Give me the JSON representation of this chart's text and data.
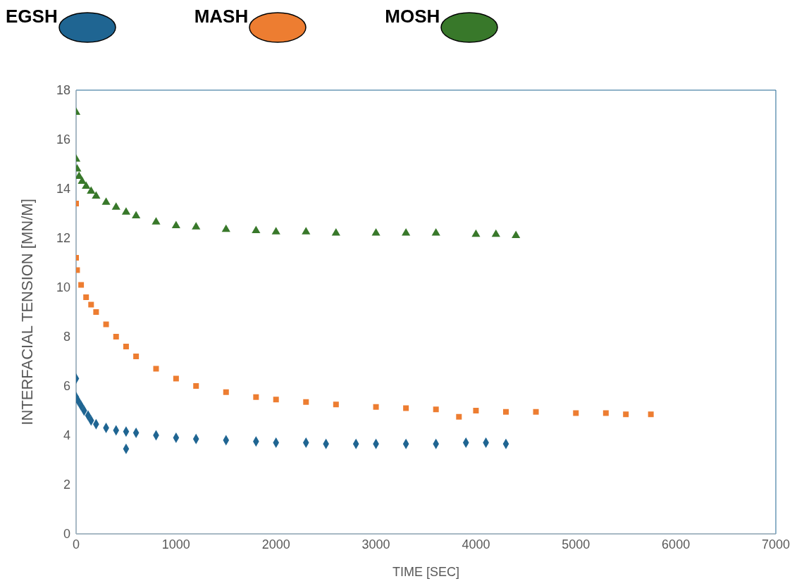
{
  "chart_data": {
    "type": "scatter",
    "xlabel": "TIME [SEC]",
    "ylabel": "INTERFACIAL TENSION [MN/M]",
    "xlim": [
      0,
      7000
    ],
    "xticks": [
      0,
      1000,
      2000,
      3000,
      4000,
      5000,
      6000,
      7000
    ],
    "ylim": [
      0,
      18
    ],
    "yticks": [
      0,
      2,
      4,
      6,
      8,
      10,
      12,
      14,
      16,
      18
    ],
    "grid": false,
    "legend": "top left",
    "series": [
      {
        "name": "EGSH",
        "color": "#1f6592",
        "marker": "diamond",
        "x": [
          0,
          0,
          20,
          50,
          80,
          120,
          150,
          200,
          300,
          400,
          500,
          600,
          800,
          1000,
          1200,
          1500,
          1800,
          2000,
          2300,
          2500,
          2800,
          3000,
          3300,
          3600,
          3900,
          4100,
          4300,
          500
        ],
        "values": [
          6.3,
          5.55,
          5.4,
          5.2,
          5.0,
          4.8,
          4.6,
          4.45,
          4.3,
          4.2,
          4.15,
          4.1,
          4.0,
          3.9,
          3.85,
          3.8,
          3.75,
          3.7,
          3.7,
          3.65,
          3.65,
          3.65,
          3.65,
          3.65,
          3.7,
          3.7,
          3.65,
          3.45
        ]
      },
      {
        "name": "MASH",
        "color": "#ed7d31",
        "marker": "square",
        "x": [
          0,
          0,
          10,
          50,
          100,
          150,
          200,
          300,
          400,
          500,
          600,
          800,
          1000,
          1200,
          1500,
          1800,
          2000,
          2300,
          2600,
          3000,
          3300,
          3600,
          4000,
          4300,
          4600,
          5000,
          5300,
          5500,
          5750,
          3830
        ],
        "values": [
          13.4,
          11.2,
          10.7,
          10.1,
          9.6,
          9.3,
          9.0,
          8.5,
          8.0,
          7.6,
          7.2,
          6.7,
          6.3,
          6.0,
          5.75,
          5.55,
          5.45,
          5.35,
          5.25,
          5.15,
          5.1,
          5.05,
          5.0,
          4.95,
          4.95,
          4.9,
          4.9,
          4.85,
          4.85,
          4.75
        ]
      },
      {
        "name": "MOSH",
        "color": "#38782a",
        "marker": "triangle",
        "x": [
          0,
          0,
          10,
          30,
          60,
          100,
          150,
          200,
          300,
          400,
          500,
          600,
          800,
          1000,
          1200,
          1500,
          1800,
          2000,
          2300,
          2600,
          3000,
          3300,
          3600,
          4000,
          4200,
          4400
        ],
        "values": [
          17.1,
          15.2,
          14.8,
          14.5,
          14.3,
          14.1,
          13.9,
          13.7,
          13.45,
          13.25,
          13.05,
          12.9,
          12.65,
          12.5,
          12.45,
          12.35,
          12.3,
          12.25,
          12.25,
          12.2,
          12.2,
          12.2,
          12.2,
          12.15,
          12.15,
          12.1
        ]
      }
    ]
  }
}
